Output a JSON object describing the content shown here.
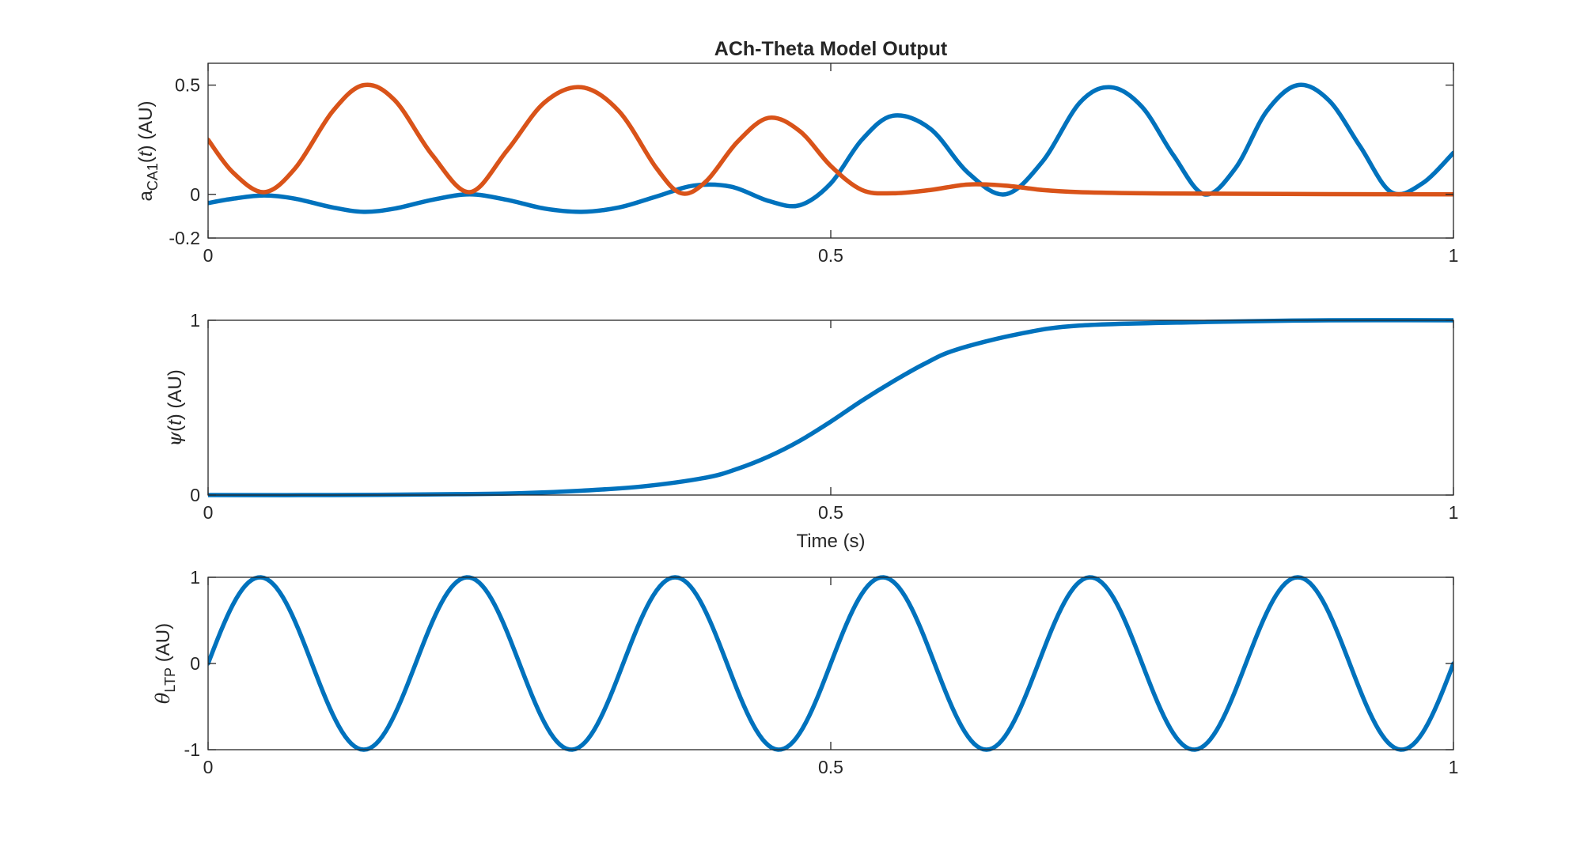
{
  "chart_data": [
    {
      "type": "line",
      "title": "ACh-Theta Model Output",
      "ylabel": {
        "main": "a",
        "sub": "CA1",
        "mid": "(",
        "ital": "t",
        "end": ") (AU)"
      },
      "xlabel": "",
      "xlim": [
        0,
        1
      ],
      "ylim": [
        -0.2,
        0.6
      ],
      "xticks": [
        0,
        0.5,
        1
      ],
      "xtick_labels": [
        "0",
        "0.5",
        "1"
      ],
      "yticks": [
        -0.2,
        0,
        0.5
      ],
      "ytick_labels": [
        "-0.2",
        "0",
        "0.5"
      ],
      "grid": false,
      "series": [
        {
          "color": "#0072BD",
          "x": [
            0,
            0.02,
            0.045,
            0.07,
            0.1,
            0.125,
            0.15,
            0.18,
            0.21,
            0.24,
            0.27,
            0.3,
            0.33,
            0.36,
            0.39,
            0.42,
            0.45,
            0.475,
            0.5,
            0.525,
            0.55,
            0.58,
            0.61,
            0.64,
            0.67,
            0.7,
            0.725,
            0.75,
            0.775,
            0.8,
            0.825,
            0.85,
            0.875,
            0.9,
            0.925,
            0.95,
            0.975,
            1.0
          ],
          "y": [
            -0.04,
            -0.02,
            -0.005,
            -0.02,
            -0.06,
            -0.08,
            -0.065,
            -0.025,
            0.0,
            -0.025,
            -0.065,
            -0.08,
            -0.06,
            -0.01,
            0.04,
            0.035,
            -0.03,
            -0.05,
            0.05,
            0.25,
            0.36,
            0.3,
            0.1,
            0.0,
            0.15,
            0.42,
            0.49,
            0.4,
            0.18,
            0.0,
            0.12,
            0.38,
            0.5,
            0.43,
            0.22,
            0.01,
            0.05,
            0.19
          ]
        },
        {
          "color": "#D95319",
          "x": [
            0,
            0.02,
            0.045,
            0.07,
            0.1,
            0.125,
            0.15,
            0.18,
            0.21,
            0.24,
            0.27,
            0.3,
            0.33,
            0.36,
            0.38,
            0.4,
            0.425,
            0.45,
            0.475,
            0.5,
            0.525,
            0.55,
            0.58,
            0.61,
            0.64,
            0.67,
            0.7,
            0.75,
            0.8,
            0.9,
            1.0
          ],
          "y": [
            0.25,
            0.1,
            0.01,
            0.12,
            0.38,
            0.5,
            0.43,
            0.18,
            0.01,
            0.2,
            0.42,
            0.49,
            0.38,
            0.12,
            0.005,
            0.06,
            0.24,
            0.35,
            0.29,
            0.13,
            0.02,
            0.005,
            0.02,
            0.045,
            0.04,
            0.02,
            0.01,
            0.005,
            0.003,
            0.001,
            0.0
          ]
        }
      ]
    },
    {
      "type": "line",
      "ylabel": {
        "main": "ψ",
        "sub": "",
        "mid": "(",
        "ital": "t",
        "end": ") (AU)"
      },
      "xlabel": "Time (s)",
      "xlim": [
        0,
        1
      ],
      "ylim": [
        0,
        1
      ],
      "xticks": [
        0,
        0.5,
        1
      ],
      "xtick_labels": [
        "0",
        "0.5",
        "1"
      ],
      "yticks": [
        0,
        1
      ],
      "ytick_labels": [
        "0",
        "1"
      ],
      "grid": false,
      "series": [
        {
          "color": "#0072BD",
          "x": [
            0,
            0.1,
            0.2,
            0.25,
            0.3,
            0.35,
            0.4,
            0.425,
            0.45,
            0.475,
            0.5,
            0.525,
            0.55,
            0.575,
            0.6,
            0.65,
            0.7,
            0.8,
            0.9,
            1.0
          ],
          "y": [
            0.0,
            0.0,
            0.005,
            0.01,
            0.025,
            0.05,
            0.1,
            0.15,
            0.22,
            0.31,
            0.42,
            0.54,
            0.65,
            0.75,
            0.83,
            0.92,
            0.97,
            0.99,
            1.0,
            1.0
          ]
        }
      ]
    },
    {
      "type": "line",
      "ylabel": {
        "main": "θ",
        "sub": "LTP",
        "mid": "",
        "ital": "",
        "end": " (AU)"
      },
      "xlabel": "",
      "xlim": [
        0,
        1
      ],
      "ylim": [
        -1,
        1
      ],
      "xticks": [
        0,
        0.5,
        1
      ],
      "xtick_labels": [
        "0",
        "0.5",
        "1"
      ],
      "yticks": [
        -1,
        0,
        1
      ],
      "ytick_labels": [
        "-1",
        "0",
        "1"
      ],
      "grid": false,
      "series": [
        {
          "color": "#0072BD",
          "function": "sine",
          "amplitude": 1,
          "frequency_hz": 6,
          "x_step": 0.0025
        }
      ]
    }
  ]
}
